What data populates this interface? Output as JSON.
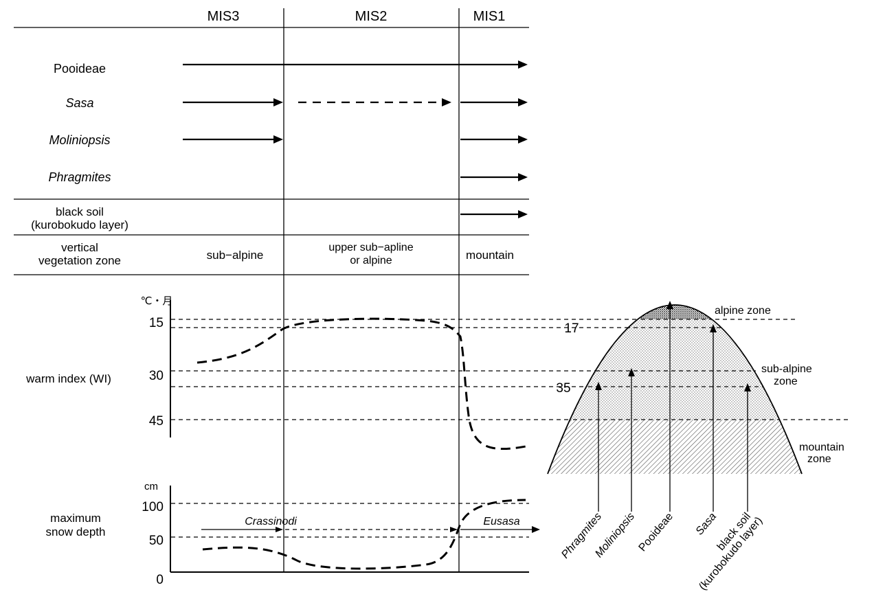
{
  "table": {
    "periods": [
      "MIS3",
      "MIS2",
      "MIS1"
    ],
    "rows": {
      "pooideae": "Pooideae",
      "sasa": "Sasa",
      "moliniopsis": "Moliniopsis",
      "phragmites": "Phragmites",
      "black_soil_1": "black soil",
      "black_soil_2": "(kurobokudo layer)",
      "zone_label_1": "vertical",
      "zone_label_2": "vegetation zone"
    },
    "zones": {
      "mis3": "sub−alpine",
      "mis2_1": "upper sub−apline",
      "mis2_2": "or alpine",
      "mis1": "mountain"
    }
  },
  "warm_index": {
    "label": "warm index (WI)",
    "unit": "℃・月",
    "ticks": [
      "15",
      "30",
      "45"
    ]
  },
  "snow": {
    "label_1": "maximum",
    "label_2": "snow depth",
    "unit": "cm",
    "ticks": [
      "100",
      "50",
      "0"
    ],
    "crassinodi": "Crassinodi",
    "eusasa": "Eusasa"
  },
  "mountain": {
    "alpine": "alpine zone",
    "subalpine_1": "sub-alpine",
    "subalpine_2": "zone",
    "mountain_1": "mountain",
    "mountain_2": "zone",
    "wi_17": "17",
    "wi_35": "35",
    "taxa": [
      "Phragmites",
      "Moliniopsis",
      "Pooideae",
      "Sasa",
      "black soil",
      "(kurobokudo layer)"
    ]
  }
}
